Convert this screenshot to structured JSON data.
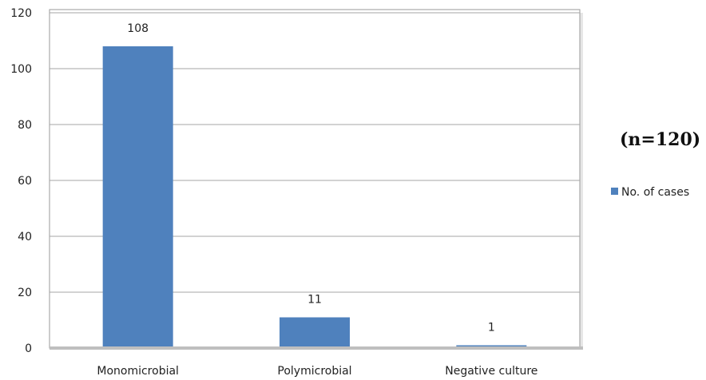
{
  "chart_data": {
    "type": "bar",
    "categories": [
      "Monomicrobial",
      "Polymicrobial",
      "Negative culture"
    ],
    "series": [
      {
        "name": "No. of cases",
        "values": [
          108,
          11,
          1
        ],
        "color": "#4f81bd"
      }
    ],
    "data_labels": [
      "108",
      "11",
      "1"
    ],
    "y_ticks": [
      "0",
      "20",
      "40",
      "60",
      "80",
      "100",
      "120"
    ],
    "ylim": [
      0,
      120
    ],
    "annotation": "(n=120)",
    "grid": true,
    "legend_position": "right"
  }
}
